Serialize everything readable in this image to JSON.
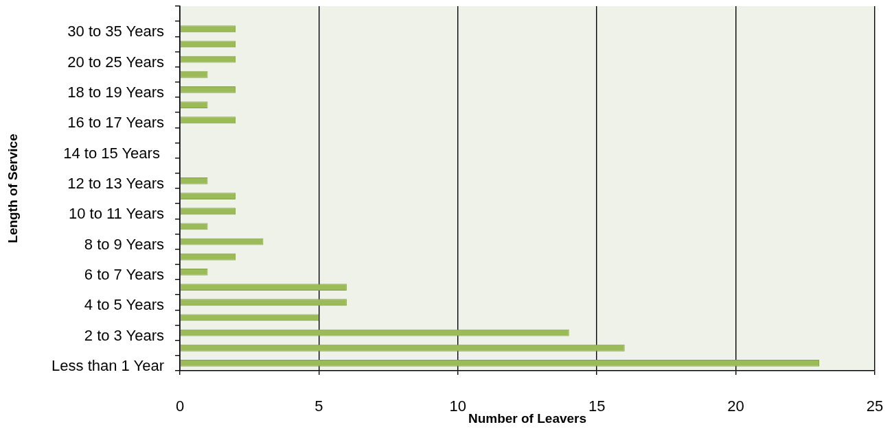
{
  "chart_data": {
    "type": "bar",
    "orientation": "horizontal",
    "xlabel": "Number of Leavers",
    "ylabel": "Length of Service",
    "categories": [
      null,
      "30 to 35 Years",
      null,
      "20 to 25 Years",
      null,
      "18 to 19 Years",
      null,
      "16 to 17 Years",
      null,
      "14 to 15 Years ",
      null,
      "12 to 13 Years",
      null,
      "10 to 11 Years",
      null,
      "8 to 9 Years",
      null,
      "6 to 7 Years",
      null,
      "4 to 5 Years",
      null,
      "2 to 3 Years",
      null,
      "Less than 1 Year"
    ],
    "values": [
      null,
      2,
      2,
      2,
      1,
      2,
      1,
      2,
      null,
      null,
      null,
      1,
      2,
      2,
      1,
      3,
      2,
      1,
      6,
      6,
      5,
      14,
      16,
      23
    ],
    "color": "#9bbb59",
    "xlim": [
      0,
      25
    ],
    "xticks": [
      0,
      5,
      10,
      15,
      20,
      25
    ],
    "grid": "x"
  }
}
